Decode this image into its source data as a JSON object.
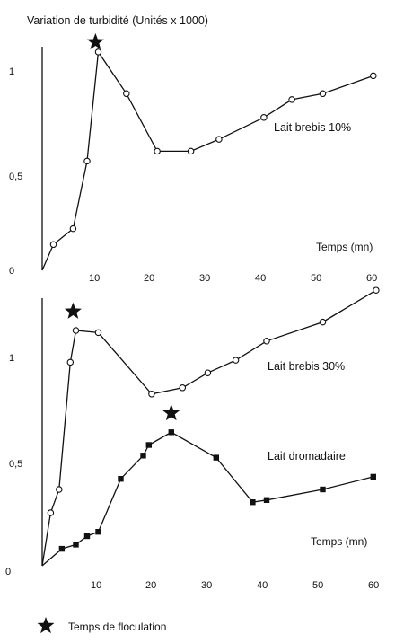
{
  "chart_data": [
    {
      "type": "line",
      "title": "Variation de turbidité  (Unités x 1000)",
      "xlabel": "Temps (mn)",
      "ylabel": "",
      "xlim": [
        0,
        60
      ],
      "ylim": [
        0,
        1.2
      ],
      "x_ticks": [
        "10",
        "20",
        "30",
        "40",
        "50",
        "60"
      ],
      "y_ticks": [
        "0",
        "0,5",
        "1"
      ],
      "grid": false,
      "series": [
        {
          "name": "Lait brebis 10%",
          "marker": "open-circle",
          "x": [
            2,
            5.5,
            8,
            10,
            15,
            20.5,
            26.5,
            31.5,
            39.5,
            44.5,
            50,
            59
          ],
          "y": [
            0.13,
            0.21,
            0.55,
            1.1,
            0.89,
            0.6,
            0.6,
            0.66,
            0.77,
            0.86,
            0.89,
            0.98
          ]
        }
      ],
      "floc_points": [
        {
          "x": 9.5,
          "y": 1.15
        }
      ]
    },
    {
      "type": "line",
      "title": "",
      "xlabel": "Temps (mn)",
      "ylabel": "",
      "xlim": [
        0,
        60
      ],
      "ylim": [
        0,
        1.3
      ],
      "x_ticks": [
        "0",
        "10",
        "20",
        "30",
        "40",
        "50",
        "60"
      ],
      "y_ticks": [
        "0,5",
        "1"
      ],
      "grid": false,
      "series": [
        {
          "name": "Lait brebis 30%",
          "marker": "open-circle",
          "x": [
            1.5,
            3,
            5,
            6,
            10,
            19.5,
            25,
            29.5,
            34.5,
            40,
            50,
            59.5
          ],
          "y": [
            0.25,
            0.36,
            0.96,
            1.11,
            1.1,
            0.81,
            0.84,
            0.91,
            0.97,
            1.06,
            1.15,
            1.3
          ]
        },
        {
          "name": "Lait dromadaire",
          "marker": "filled-square",
          "x": [
            3.5,
            6,
            8,
            10,
            14,
            18,
            19,
            23,
            31,
            37.5,
            40,
            50,
            59
          ],
          "y": [
            0.08,
            0.1,
            0.14,
            0.16,
            0.41,
            0.52,
            0.57,
            0.63,
            0.51,
            0.3,
            0.31,
            0.36,
            0.42
          ]
        }
      ],
      "floc_points": [
        {
          "x": 5.5,
          "y": 1.2
        },
        {
          "x": 23,
          "y": 0.72
        }
      ]
    }
  ],
  "legend": {
    "label": "Temps de floculation",
    "icon": "star-icon"
  }
}
